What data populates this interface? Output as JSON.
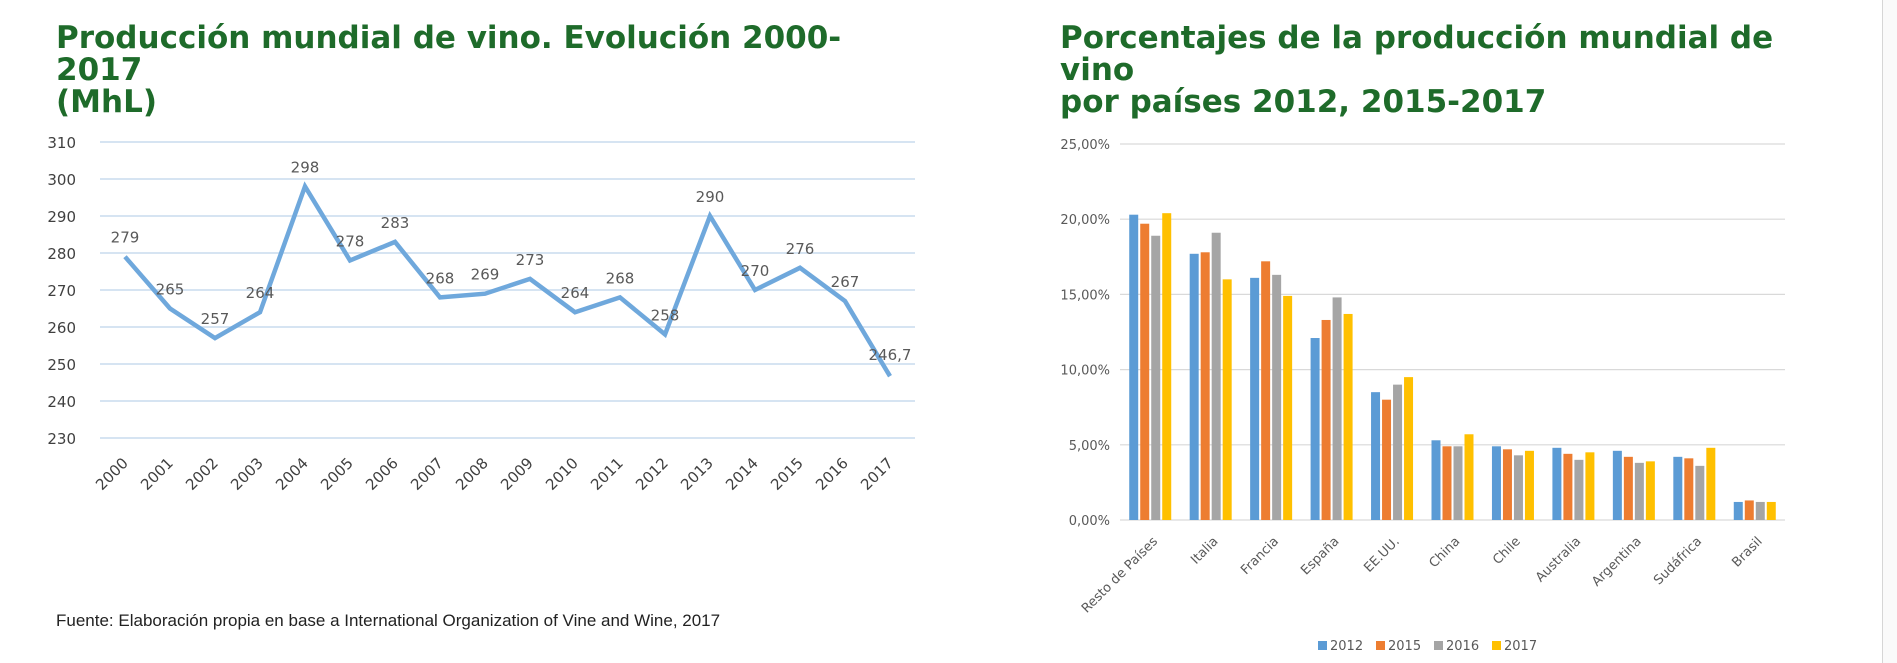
{
  "colors": {
    "title": "#1e6b2a",
    "line": "#6fa8dc",
    "grid": "#c9dcee",
    "grid2": "#d9d9d9"
  },
  "left": {
    "title_line1": "Producción mundial de vino. Evolución 2000-2017",
    "title_line2": "(MhL)"
  },
  "right": {
    "title_line1": "Porcentajes de la producción mundial de vino",
    "title_line2": "por países 2012, 2015-2017"
  },
  "source": "Fuente: Elaboración propia en base a International Organization of Vine and Wine, 2017",
  "chart_data": [
    {
      "type": "line",
      "title": "Producción mundial de vino. Evolución 2000-2017 (MhL)",
      "x": [
        "2000",
        "2001",
        "2002",
        "2003",
        "2004",
        "2005",
        "2006",
        "2007",
        "2008",
        "2009",
        "2010",
        "2011",
        "2012",
        "2013",
        "2014",
        "2015",
        "2016",
        "2017"
      ],
      "values": [
        279,
        265,
        257,
        264,
        298,
        278,
        283,
        268,
        269,
        273,
        264,
        268,
        258,
        290,
        270,
        276,
        267,
        246.7
      ],
      "data_labels": [
        "279",
        "265",
        "257",
        "264",
        "298",
        "278",
        "283",
        "268",
        "269",
        "273",
        "264",
        "268",
        "258",
        "290",
        "270",
        "276",
        "267",
        "246,7"
      ],
      "ylim": [
        230,
        310
      ],
      "yticks": [
        230,
        240,
        250,
        260,
        270,
        280,
        290,
        300,
        310
      ],
      "grid": true,
      "legend": "none"
    },
    {
      "type": "bar",
      "title": "Porcentajes de la producción mundial de vino por países 2012, 2015-2017",
      "categories": [
        "Resto de Países",
        "Italia",
        "Francia",
        "España",
        "EE.UU.",
        "China",
        "Chile",
        "Australia",
        "Argentina",
        "Sudáfrica",
        "Brasil"
      ],
      "series": [
        {
          "name": "2012",
          "color": "#5b9bd5",
          "values": [
            20.3,
            17.7,
            16.1,
            12.1,
            8.5,
            5.3,
            4.9,
            4.8,
            4.6,
            4.2,
            1.2
          ]
        },
        {
          "name": "2015",
          "color": "#ed7d31",
          "values": [
            19.7,
            17.8,
            17.2,
            13.3,
            8.0,
            4.9,
            4.7,
            4.4,
            4.2,
            4.1,
            1.3
          ]
        },
        {
          "name": "2016",
          "color": "#a5a5a5",
          "values": [
            18.9,
            19.1,
            16.3,
            14.8,
            9.0,
            4.9,
            4.3,
            4.0,
            3.8,
            3.6,
            1.2
          ]
        },
        {
          "name": "2017",
          "color": "#ffc000",
          "values": [
            20.4,
            16.0,
            14.9,
            13.7,
            9.5,
            5.7,
            4.6,
            4.5,
            3.9,
            4.8,
            1.2
          ]
        }
      ],
      "ylim": [
        0,
        25
      ],
      "yticks": [
        "0,00%",
        "5,00%",
        "10,00%",
        "15,00%",
        "20,00%",
        "25,00%"
      ],
      "grid": true,
      "legend": "bottom"
    }
  ]
}
